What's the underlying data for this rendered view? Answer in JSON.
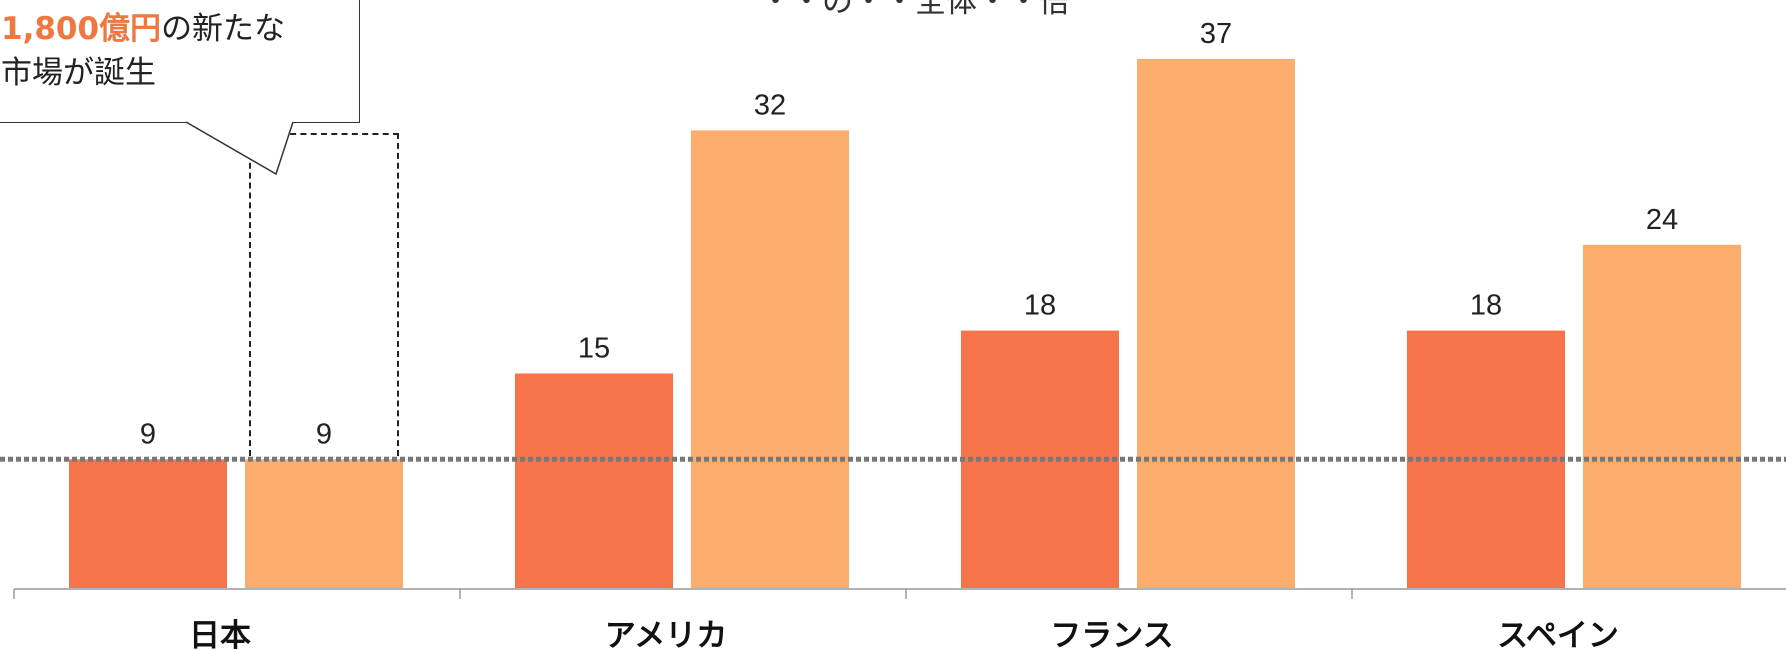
{
  "colors": {
    "series1": "#f7734a",
    "series2": "#fcac6b",
    "reference_line": "#777777",
    "axis": "#9a9a9a",
    "highlight_text": "#f07840"
  },
  "callout": {
    "highlight": "1,800億円",
    "text_rest": "の新たな",
    "line2": "市場が誕生"
  },
  "title_partial": "・・の・・全体・・倍",
  "chart_data": {
    "type": "bar",
    "title": "",
    "categories": [
      "日本",
      "アメリカ",
      "フランス",
      "スペイン"
    ],
    "series": [
      {
        "values": [
          9,
          15,
          18,
          18
        ]
      },
      {
        "values": [
          9,
          32,
          37,
          24
        ]
      }
    ],
    "reference_line": 9,
    "ylim": [
      0,
      40
    ],
    "grid": false,
    "legend": "none",
    "data_labels": true
  }
}
